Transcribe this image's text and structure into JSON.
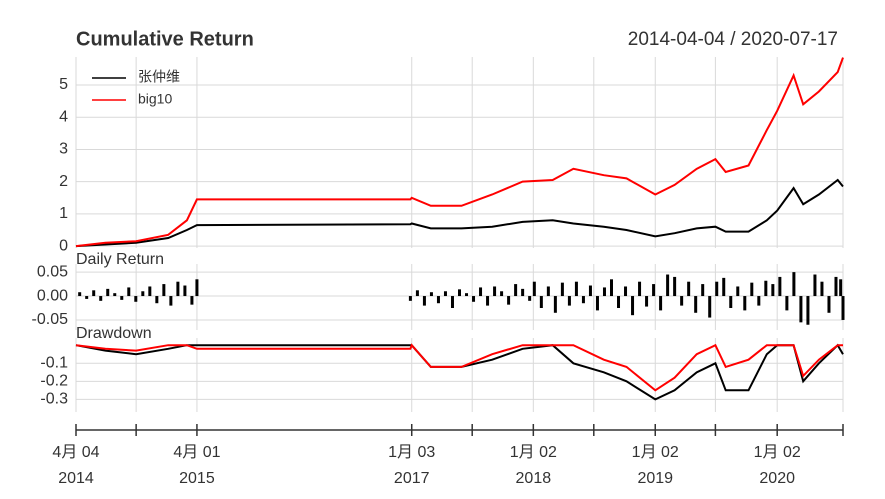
{
  "chart_data": [
    {
      "type": "line",
      "title": "Cumulative Return",
      "subtitle": "2014-04-04 / 2020-07-17",
      "x": [
        "2014-04-04",
        "2014-07-01",
        "2014-10-01",
        "2015-01-05",
        "2015-03-02",
        "2015-04-01",
        "2016-12-30",
        "2017-01-03",
        "2017-03-01",
        "2017-06-01",
        "2017-09-01",
        "2017-12-01",
        "2018-03-01",
        "2018-05-02",
        "2018-08-01",
        "2018-10-08",
        "2019-01-02",
        "2019-03-01",
        "2019-05-06",
        "2019-07-01",
        "2019-08-01",
        "2019-10-08",
        "2019-12-02",
        "2020-01-02",
        "2020-02-20",
        "2020-03-20",
        "2020-05-06",
        "2020-07-01",
        "2020-07-17"
      ],
      "series": [
        {
          "name": "张仲维",
          "color": "#000000",
          "values": [
            0,
            0.05,
            0.1,
            0.25,
            0.5,
            0.65,
            0.68,
            0.7,
            0.55,
            0.55,
            0.6,
            0.75,
            0.8,
            0.7,
            0.6,
            0.5,
            0.3,
            0.4,
            0.55,
            0.6,
            0.45,
            0.45,
            0.8,
            1.1,
            1.8,
            1.3,
            1.6,
            2.05,
            1.85
          ]
        },
        {
          "name": "big10",
          "color": "#ff0000",
          "values": [
            0,
            0.1,
            0.15,
            0.35,
            0.8,
            1.45,
            1.45,
            1.5,
            1.25,
            1.25,
            1.6,
            2.0,
            2.05,
            2.4,
            2.2,
            2.1,
            1.6,
            1.9,
            2.4,
            2.7,
            2.3,
            2.5,
            3.6,
            4.2,
            5.3,
            4.4,
            4.8,
            5.4,
            5.85
          ]
        }
      ],
      "xlim": [
        "2014-04-04",
        "2020-07-17"
      ],
      "ylim": [
        -0.06,
        5.87
      ],
      "yticks": [
        0,
        1,
        2,
        3,
        4,
        5
      ],
      "legend": "top-left",
      "grid": true
    },
    {
      "type": "bar",
      "title": "Daily Return",
      "x": [
        "2014-04-15",
        "2014-05-06",
        "2014-05-27",
        "2014-06-17",
        "2014-07-08",
        "2014-07-29",
        "2014-08-19",
        "2014-09-09",
        "2014-09-30",
        "2014-10-21",
        "2014-11-11",
        "2014-12-02",
        "2014-12-23",
        "2015-01-13",
        "2015-02-03",
        "2015-02-24",
        "2015-03-17",
        "2015-04-01",
        "2016-12-30",
        "2017-01-20",
        "2017-02-10",
        "2017-03-03",
        "2017-03-24",
        "2017-04-14",
        "2017-05-05",
        "2017-05-26",
        "2017-06-16",
        "2017-07-07",
        "2017-07-28",
        "2017-08-18",
        "2017-09-08",
        "2017-09-29",
        "2017-10-20",
        "2017-11-10",
        "2017-12-01",
        "2017-12-22",
        "2018-01-05",
        "2018-01-26",
        "2018-02-16",
        "2018-03-09",
        "2018-03-30",
        "2018-04-20",
        "2018-05-11",
        "2018-06-01",
        "2018-06-22",
        "2018-07-13",
        "2018-08-03",
        "2018-08-24",
        "2018-09-14",
        "2018-10-05",
        "2018-10-26",
        "2018-11-16",
        "2018-12-07",
        "2018-12-28",
        "2019-01-18",
        "2019-02-08",
        "2019-03-01",
        "2019-03-22",
        "2019-04-12",
        "2019-05-03",
        "2019-05-24",
        "2019-06-14",
        "2019-07-05",
        "2019-07-26",
        "2019-08-16",
        "2019-09-06",
        "2019-09-27",
        "2019-10-18",
        "2019-11-08",
        "2019-11-29",
        "2019-12-20",
        "2020-01-10",
        "2020-01-31",
        "2020-02-21",
        "2020-03-13",
        "2020-04-03",
        "2020-04-24",
        "2020-05-15",
        "2020-06-05",
        "2020-06-26",
        "2020-07-10",
        "2020-07-17"
      ],
      "values": [
        0.008,
        -0.006,
        0.012,
        -0.01,
        0.015,
        0.006,
        -0.008,
        0.018,
        -0.012,
        0.01,
        0.02,
        -0.015,
        0.025,
        -0.02,
        0.03,
        0.022,
        -0.018,
        0.035,
        -0.01,
        0.012,
        -0.02,
        0.008,
        -0.015,
        0.01,
        -0.025,
        0.014,
        0.006,
        -0.012,
        0.018,
        -0.02,
        0.02,
        0.01,
        -0.018,
        0.025,
        0.015,
        -0.01,
        0.03,
        -0.025,
        0.02,
        -0.035,
        0.028,
        -0.02,
        0.03,
        -0.015,
        0.022,
        -0.03,
        0.018,
        0.035,
        -0.025,
        0.02,
        -0.04,
        0.03,
        -0.022,
        0.025,
        -0.03,
        0.045,
        0.04,
        -0.02,
        0.03,
        -0.035,
        0.025,
        -0.045,
        0.03,
        0.038,
        -0.025,
        0.02,
        -0.03,
        0.028,
        -0.02,
        0.032,
        0.025,
        0.04,
        -0.03,
        0.05,
        -0.055,
        -0.06,
        0.045,
        0.03,
        -0.035,
        0.04,
        0.035,
        -0.05
      ],
      "color": "#000000",
      "xlim": [
        "2014-04-04",
        "2020-07-17"
      ],
      "ylim": [
        -0.071,
        0.067
      ],
      "yticks": [
        0.05,
        {
          "value": 0,
          "label": "0.00"
        },
        -0.05
      ],
      "grid": true
    },
    {
      "type": "line",
      "title": "Drawdown",
      "x": [
        "2014-04-04",
        "2014-07-01",
        "2014-10-01",
        "2015-01-05",
        "2015-03-02",
        "2015-04-01",
        "2016-12-30",
        "2017-01-03",
        "2017-03-01",
        "2017-06-01",
        "2017-09-01",
        "2017-12-01",
        "2018-03-01",
        "2018-05-02",
        "2018-08-01",
        "2018-10-08",
        "2019-01-02",
        "2019-03-01",
        "2019-05-06",
        "2019-07-01",
        "2019-08-01",
        "2019-10-08",
        "2019-12-02",
        "2020-01-02",
        "2020-02-20",
        "2020-03-20",
        "2020-05-06",
        "2020-07-01",
        "2020-07-17"
      ],
      "series": [
        {
          "name": "张仲维",
          "color": "#000000",
          "values": [
            0,
            -0.03,
            -0.05,
            -0.02,
            0,
            0,
            0,
            0,
            -0.12,
            -0.12,
            -0.08,
            -0.02,
            0,
            -0.1,
            -0.15,
            -0.2,
            -0.3,
            -0.25,
            -0.15,
            -0.1,
            -0.25,
            -0.25,
            -0.05,
            0,
            0,
            -0.2,
            -0.1,
            0,
            -0.05
          ]
        },
        {
          "name": "big10",
          "color": "#ff0000",
          "values": [
            0,
            -0.02,
            -0.03,
            0,
            0,
            -0.02,
            -0.02,
            0,
            -0.12,
            -0.12,
            -0.05,
            0,
            0,
            0,
            -0.08,
            -0.12,
            -0.25,
            -0.18,
            -0.05,
            0,
            -0.12,
            -0.08,
            0,
            0,
            0,
            -0.17,
            -0.08,
            0,
            0
          ]
        }
      ],
      "xlim": [
        "2014-04-04",
        "2020-07-17"
      ],
      "ylim": [
        -0.37,
        0.04
      ],
      "yticks": [
        -0.1,
        -0.2,
        -0.3
      ],
      "xticks": [
        {
          "value": "2014-04-04",
          "label": "4月 04",
          "sublabel": "2014"
        },
        {
          "value": "2014-10-01",
          "label": null
        },
        {
          "value": "2015-04-01",
          "label": "4月 01",
          "sublabel": "2015"
        },
        {
          "value": "2017-01-03",
          "label": "1月 03",
          "sublabel": "2017"
        },
        {
          "value": "2017-07-03",
          "label": null
        },
        {
          "value": "2018-01-02",
          "label": "1月 02",
          "sublabel": "2018"
        },
        {
          "value": "2018-07-02",
          "label": null
        },
        {
          "value": "2019-01-02",
          "label": "1月 02",
          "sublabel": "2019"
        },
        {
          "value": "2019-07-01",
          "label": null
        },
        {
          "value": "2020-01-02",
          "label": "1月 02",
          "sublabel": "2020"
        },
        {
          "value": "2020-07-17",
          "label": null
        }
      ],
      "grid": true
    }
  ]
}
